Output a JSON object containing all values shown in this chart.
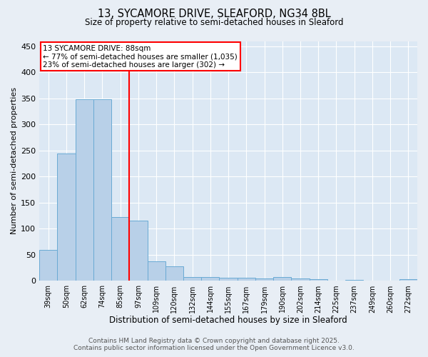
{
  "title_line1": "13, SYCAMORE DRIVE, SLEAFORD, NG34 8BL",
  "title_line2": "Size of property relative to semi-detached houses in Sleaford",
  "xlabel": "Distribution of semi-detached houses by size in Sleaford",
  "ylabel": "Number of semi-detached properties",
  "categories": [
    "39sqm",
    "50sqm",
    "62sqm",
    "74sqm",
    "85sqm",
    "97sqm",
    "109sqm",
    "120sqm",
    "132sqm",
    "144sqm",
    "155sqm",
    "167sqm",
    "179sqm",
    "190sqm",
    "202sqm",
    "214sqm",
    "225sqm",
    "237sqm",
    "249sqm",
    "260sqm",
    "272sqm"
  ],
  "values": [
    60,
    245,
    348,
    348,
    122,
    115,
    37,
    28,
    8,
    8,
    6,
    6,
    5,
    7,
    5,
    3,
    1,
    2,
    1,
    1,
    3
  ],
  "bar_color": "#b8d0e8",
  "bar_edge_color": "#6aaad4",
  "vline_x": 4.5,
  "vline_color": "red",
  "annotation_title": "13 SYCAMORE DRIVE: 88sqm",
  "annotation_line2": "← 77% of semi-detached houses are smaller (1,035)",
  "annotation_line3": "23% of semi-detached houses are larger (302) →",
  "ylim": [
    0,
    460
  ],
  "yticks": [
    0,
    50,
    100,
    150,
    200,
    250,
    300,
    350,
    400,
    450
  ],
  "footer_line1": "Contains HM Land Registry data © Crown copyright and database right 2025.",
  "footer_line2": "Contains public sector information licensed under the Open Government Licence v3.0.",
  "bg_color": "#e8eef5",
  "plot_bg_color": "#dce8f4",
  "grid_color": "#ffffff"
}
